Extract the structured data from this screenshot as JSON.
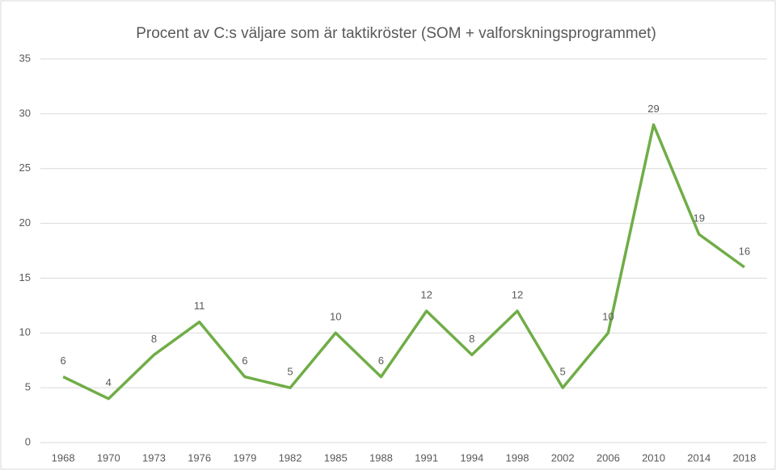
{
  "chart_data": {
    "type": "line",
    "title": "Procent av C:s väljare som är taktikröster (SOM + valforskningsprogrammet)",
    "categories": [
      "1968",
      "1970",
      "1973",
      "1976",
      "1979",
      "1982",
      "1985",
      "1988",
      "1991",
      "1994",
      "1998",
      "2002",
      "2006",
      "2010",
      "2014",
      "2018"
    ],
    "values": [
      6,
      4,
      8,
      11,
      6,
      5,
      10,
      6,
      12,
      8,
      12,
      5,
      10,
      29,
      19,
      16
    ],
    "color": "#70ad47",
    "ylim": [
      0,
      35
    ],
    "yticks": [
      0,
      5,
      10,
      15,
      20,
      25,
      30,
      35
    ],
    "grid": true
  }
}
